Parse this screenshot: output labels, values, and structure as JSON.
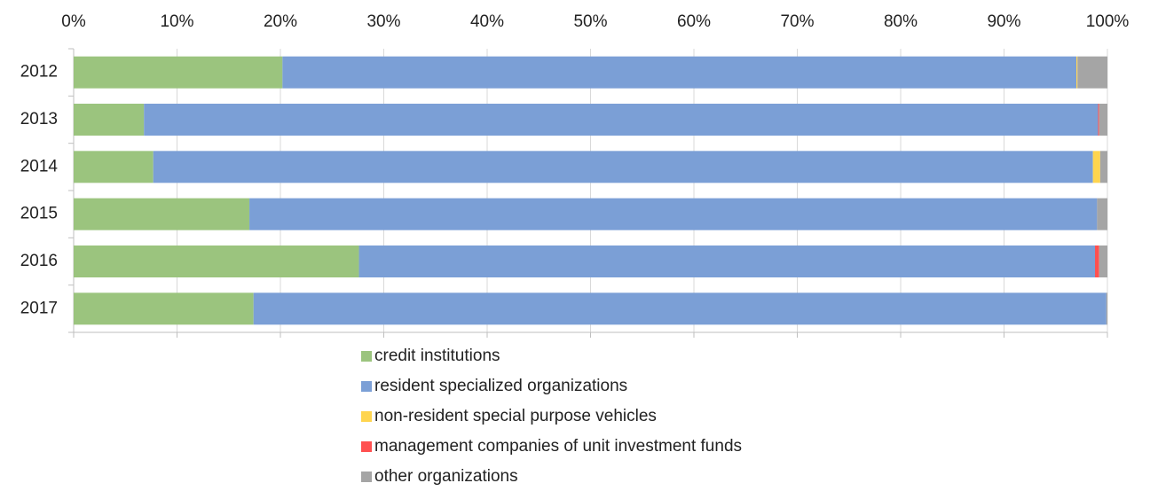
{
  "chart_data": {
    "type": "stacked_bar_horizontal",
    "categories": [
      "2012",
      "2013",
      "2014",
      "2015",
      "2016",
      "2017"
    ],
    "series": [
      {
        "name": "credit institutions",
        "color": "#9bc47e",
        "values": [
          20.2,
          6.8,
          7.7,
          17.0,
          27.6,
          17.4
        ]
      },
      {
        "name": "resident specialized organizations",
        "color": "#7b9fd6",
        "values": [
          76.8,
          92.3,
          90.9,
          82.0,
          71.2,
          82.5
        ]
      },
      {
        "name": "non-resident special purpose vehicles",
        "color": "#ffd54f",
        "values": [
          0.1,
          0,
          0.7,
          0,
          0,
          0
        ]
      },
      {
        "name": "management companies of unit investment funds",
        "color": "#ff5050",
        "values": [
          0,
          0.1,
          0,
          0,
          0.4,
          0
        ]
      },
      {
        "name": "other organizations",
        "color": "#a5a5a5",
        "values": [
          2.9,
          0.8,
          0.7,
          1.0,
          0.8,
          0.1
        ]
      }
    ],
    "xlim": [
      0,
      100
    ],
    "xticks": [
      {
        "value": 0,
        "label": "0%"
      },
      {
        "value": 10,
        "label": "10%"
      },
      {
        "value": 20,
        "label": "20%"
      },
      {
        "value": 30,
        "label": "30%"
      },
      {
        "value": 40,
        "label": "40%"
      },
      {
        "value": 50,
        "label": "50%"
      },
      {
        "value": 60,
        "label": "60%"
      },
      {
        "value": 70,
        "label": "70%"
      },
      {
        "value": 80,
        "label": "80%"
      },
      {
        "value": 90,
        "label": "90%"
      },
      {
        "value": 100,
        "label": "100%"
      }
    ],
    "grid": true,
    "legend": "bottom"
  }
}
